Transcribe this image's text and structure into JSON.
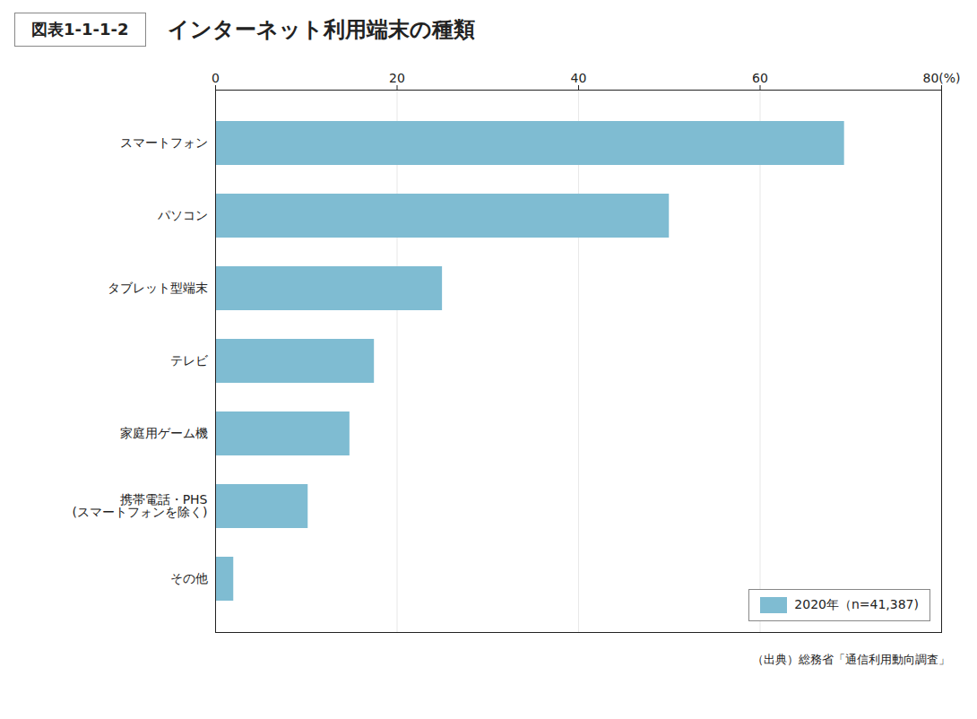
{
  "chart_data": {
    "type": "bar",
    "orientation": "horizontal",
    "title": "インターネット利用端末の種類",
    "subtitle": "図表1-1-1-2",
    "annotations": [
      "（出典）総務省「通信利用動向調査」"
    ],
    "categories": [
      "その他",
      "携帯電話・PHS\n(スマートフォンを除く)",
      "家庭用ゲーム機",
      "テレビ",
      "タブレット型端末",
      "パソコン",
      "スマートフォン"
    ],
    "series": [
      {
        "name": "2020年（n=41,387)",
        "color": "#7fbcd2",
        "values": [
          2.0,
          10.2,
          14.8,
          17.5,
          25.0,
          50.0,
          69.3
        ]
      }
    ],
    "xlim": [
      0,
      80
    ],
    "xticks": [
      0,
      20,
      40,
      60,
      {
        "value": 80,
        "label": "80(%)"
      }
    ],
    "grid": true,
    "legend": "lower right"
  }
}
